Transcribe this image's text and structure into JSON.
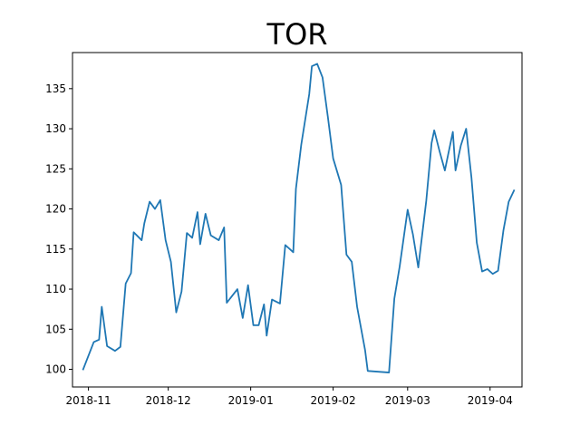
{
  "chart_data": {
    "type": "line",
    "title": "TOR",
    "xlabel": "",
    "ylabel": "",
    "grid": false,
    "xlim": [
      "2018-10-26",
      "2019-04-13"
    ],
    "ylim": [
      97.8,
      139.5
    ],
    "x_ticks": [
      {
        "date": "2018-11-01",
        "label": "2018-11"
      },
      {
        "date": "2018-12-01",
        "label": "2018-12"
      },
      {
        "date": "2019-01-01",
        "label": "2019-01"
      },
      {
        "date": "2019-02-01",
        "label": "2019-02"
      },
      {
        "date": "2019-03-01",
        "label": "2019-03"
      },
      {
        "date": "2019-04-01",
        "label": "2019-04"
      }
    ],
    "y_ticks": [
      100,
      105,
      110,
      115,
      120,
      125,
      130,
      135
    ],
    "series": [
      {
        "color": "#1f77b4",
        "points": [
          [
            "2018-10-30",
            100.0
          ],
          [
            "2018-11-03",
            103.4
          ],
          [
            "2018-11-05",
            103.7
          ],
          [
            "2018-11-06",
            107.8
          ],
          [
            "2018-11-08",
            102.9
          ],
          [
            "2018-11-11",
            102.3
          ],
          [
            "2018-11-13",
            102.8
          ],
          [
            "2018-11-15",
            110.7
          ],
          [
            "2018-11-17",
            112.0
          ],
          [
            "2018-11-18",
            117.1
          ],
          [
            "2018-11-21",
            116.1
          ],
          [
            "2018-11-22",
            118.2
          ],
          [
            "2018-11-24",
            120.9
          ],
          [
            "2018-11-26",
            120.0
          ],
          [
            "2018-11-28",
            121.1
          ],
          [
            "2018-11-30",
            116.1
          ],
          [
            "2018-12-02",
            113.4
          ],
          [
            "2018-12-04",
            107.1
          ],
          [
            "2018-12-06",
            109.7
          ],
          [
            "2018-12-08",
            117.0
          ],
          [
            "2018-12-10",
            116.4
          ],
          [
            "2018-12-12",
            119.6
          ],
          [
            "2018-12-13",
            115.6
          ],
          [
            "2018-12-15",
            119.4
          ],
          [
            "2018-12-17",
            116.7
          ],
          [
            "2018-12-20",
            116.1
          ],
          [
            "2018-12-22",
            117.7
          ],
          [
            "2018-12-23",
            108.3
          ],
          [
            "2018-12-27",
            110.0
          ],
          [
            "2018-12-29",
            106.4
          ],
          [
            "2018-12-31",
            110.5
          ],
          [
            "2019-01-02",
            105.5
          ],
          [
            "2019-01-04",
            105.5
          ],
          [
            "2019-01-06",
            108.1
          ],
          [
            "2019-01-07",
            104.2
          ],
          [
            "2019-01-09",
            108.7
          ],
          [
            "2019-01-12",
            108.2
          ],
          [
            "2019-01-14",
            115.5
          ],
          [
            "2019-01-17",
            114.6
          ],
          [
            "2019-01-18",
            122.5
          ],
          [
            "2019-01-20",
            128.0
          ],
          [
            "2019-01-23",
            134.3
          ],
          [
            "2019-01-24",
            137.8
          ],
          [
            "2019-01-26",
            138.1
          ],
          [
            "2019-01-28",
            136.4
          ],
          [
            "2019-01-30",
            131.5
          ],
          [
            "2019-02-01",
            126.3
          ],
          [
            "2019-02-04",
            123.0
          ],
          [
            "2019-02-06",
            114.3
          ],
          [
            "2019-02-08",
            113.4
          ],
          [
            "2019-02-10",
            107.8
          ],
          [
            "2019-02-13",
            102.4
          ],
          [
            "2019-02-14",
            99.8
          ],
          [
            "2019-02-22",
            99.6
          ],
          [
            "2019-02-24",
            108.8
          ],
          [
            "2019-02-26",
            112.8
          ],
          [
            "2019-03-01",
            119.9
          ],
          [
            "2019-03-03",
            116.8
          ],
          [
            "2019-03-05",
            112.7
          ],
          [
            "2019-03-08",
            121.0
          ],
          [
            "2019-03-10",
            128.2
          ],
          [
            "2019-03-11",
            129.8
          ],
          [
            "2019-03-13",
            127.2
          ],
          [
            "2019-03-15",
            124.8
          ],
          [
            "2019-03-18",
            129.6
          ],
          [
            "2019-03-19",
            124.8
          ],
          [
            "2019-03-21",
            127.9
          ],
          [
            "2019-03-23",
            130.0
          ],
          [
            "2019-03-25",
            123.9
          ],
          [
            "2019-03-27",
            115.8
          ],
          [
            "2019-03-29",
            112.2
          ],
          [
            "2019-03-31",
            112.5
          ],
          [
            "2019-04-02",
            111.9
          ],
          [
            "2019-04-04",
            112.3
          ],
          [
            "2019-04-06",
            117.3
          ],
          [
            "2019-04-08",
            120.9
          ],
          [
            "2019-04-10",
            122.3
          ]
        ]
      }
    ]
  }
}
